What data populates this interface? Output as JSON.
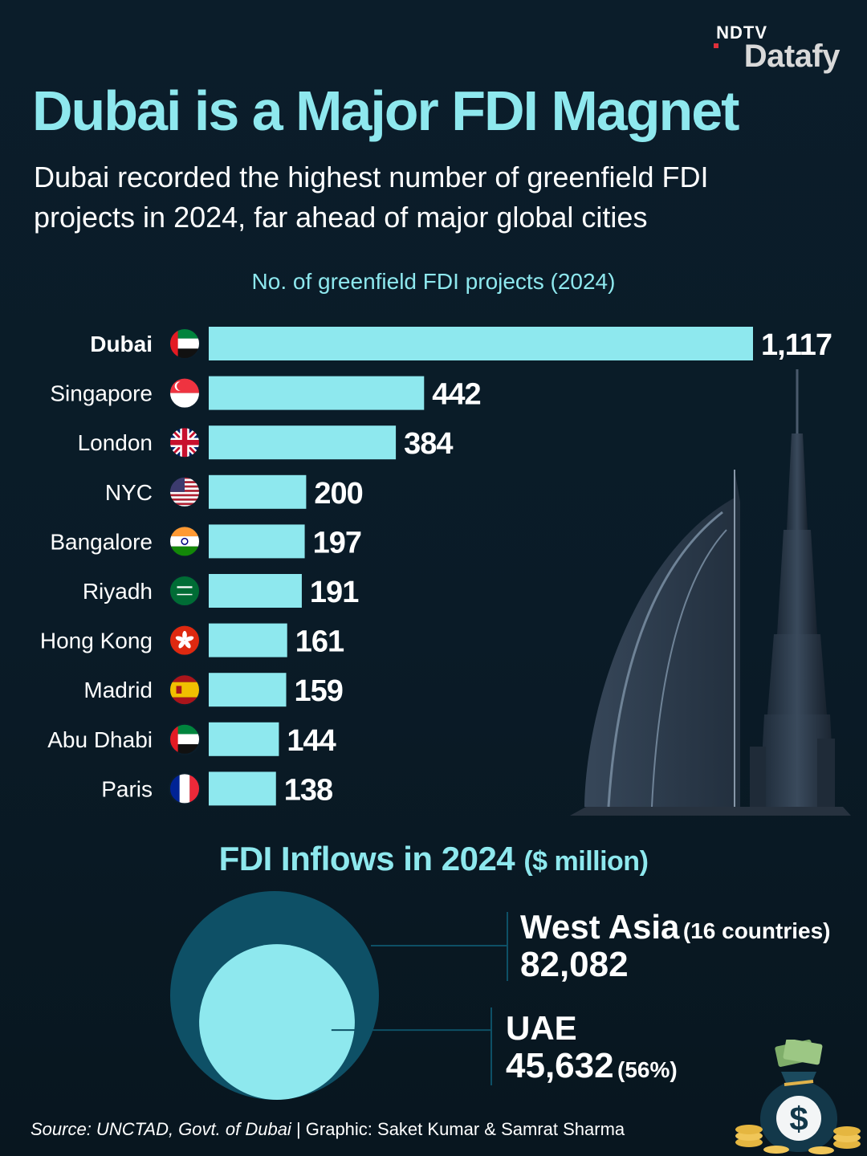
{
  "brand": {
    "top": "NDTV",
    "bottom": "Datafy"
  },
  "title": "Dubai is a Major FDI Magnet",
  "subtitle": "Dubai recorded the highest number of greenfield FDI projects in 2024, far ahead of major global cities",
  "chart_data": [
    {
      "type": "bar",
      "orientation": "horizontal",
      "title": "No. of greenfield FDI projects (2024)",
      "categories": [
        "Dubai",
        "Singapore",
        "London",
        "NYC",
        "Bangalore",
        "Riyadh",
        "Hong Kong",
        "Madrid",
        "Abu Dhabi",
        "Paris"
      ],
      "values": [
        1117,
        442,
        384,
        200,
        197,
        191,
        161,
        159,
        144,
        138
      ],
      "value_labels": [
        "1,117",
        "442",
        "384",
        "200",
        "197",
        "191",
        "161",
        "159",
        "144",
        "138"
      ],
      "flags": [
        "uae",
        "singapore",
        "uk",
        "usa",
        "india",
        "saudi",
        "hongkong",
        "spain",
        "uae",
        "france"
      ],
      "highlight": "Dubai",
      "bar_color": "#8ee8ee",
      "xlim": [
        0,
        1117
      ]
    },
    {
      "type": "bubble",
      "title": "FDI Inflows in 2024",
      "unit": "($ million)",
      "items": [
        {
          "name": "West Asia",
          "note": "(16 countries)",
          "value": 82082,
          "label": "82,082",
          "color": "#0e5066"
        },
        {
          "name": "UAE",
          "note": "",
          "value": 45632,
          "label": "45,632",
          "share": "(56%)",
          "color": "#8ee8ee"
        }
      ]
    }
  ],
  "footer": {
    "source": "Source: UNCTAD, Govt. of Dubai",
    "credit": "| Graphic: Saket Kumar & Samrat Sharma"
  },
  "colors": {
    "background": "#0b1d2a",
    "accent": "#8ee8ee",
    "bubble_outer": "#0e5066"
  }
}
